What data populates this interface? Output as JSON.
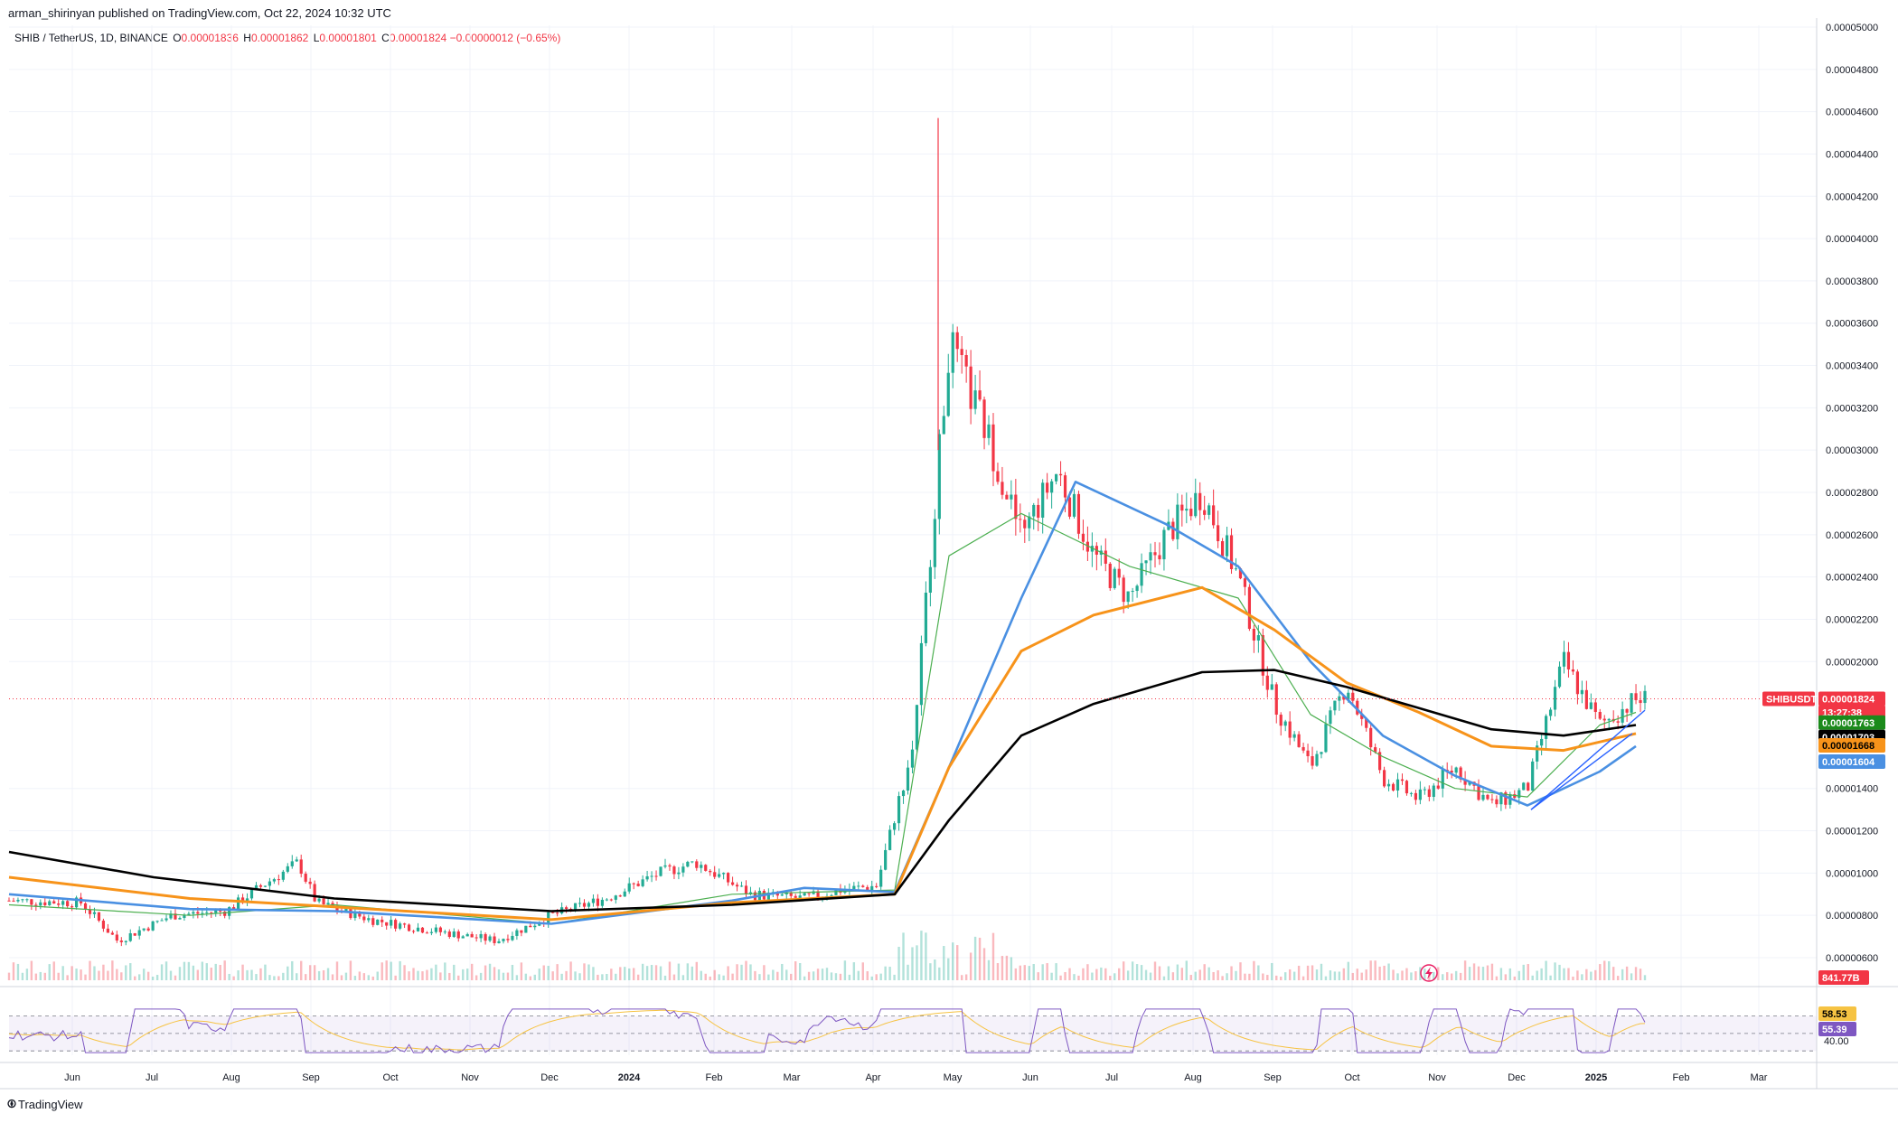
{
  "header": {
    "published": "arman_shirinyan published on TradingView.com, Oct 22, 2024 10:32 UTC"
  },
  "legend": {
    "symbol": "SHIB / TetherUS, 1D, BINANCE",
    "o_label": "O",
    "o": "0.00001836",
    "h_label": "H",
    "h": "0.00001862",
    "l_label": "L",
    "l": "0.00001801",
    "c_label": "C",
    "c": "0.00001824",
    "change": "−0.00000012 (−0.65%)"
  },
  "branding": {
    "name": "TradingView"
  },
  "icons": {
    "logo": "tradingview-logo-icon",
    "flash": "lightning-icon"
  },
  "colors": {
    "up": "#22ab94",
    "down": "#f23645",
    "ema20": "#4caf50",
    "ema50": "#f7931a",
    "sma100": "#4a90e2",
    "sma200": "#000000",
    "rsi": "#7e57c2",
    "rsi_ma": "#f6c343",
    "trend": "#2962ff"
  },
  "tags": {
    "symbol_tag": "SHIBUSDT",
    "last_price": "0.00001824",
    "countdown": "13:27:38",
    "ema_green": "0.00001763",
    "ma_black": "0.00001703",
    "ma_orange": "0.00001668",
    "ma_blue": "0.00001604",
    "volume": "841.77B",
    "rsi_ma": "58.53",
    "rsi": "55.39",
    "rsi_level": "40.00"
  },
  "chart_data": {
    "type": "candlestick",
    "title": "SHIB / TetherUS, 1D, BINANCE",
    "x_ticks": [
      "Jun",
      "Jul",
      "Aug",
      "Sep",
      "Oct",
      "Nov",
      "Dec",
      "2024",
      "Feb",
      "Mar",
      "Apr",
      "May",
      "Jun",
      "Jul",
      "Aug",
      "Sep",
      "Oct",
      "Nov",
      "Dec",
      "2025",
      "Feb",
      "Mar"
    ],
    "y_ticks": [
      "0.00005000",
      "0.00004800",
      "0.00004600",
      "0.00004400",
      "0.00004200",
      "0.00004000",
      "0.00003800",
      "0.00003600",
      "0.00003400",
      "0.00003200",
      "0.00003000",
      "0.00002800",
      "0.00002600",
      "0.00002400",
      "0.00002200",
      "0.00002000",
      "0.00001400",
      "0.00001200",
      "0.00001000",
      "0.00000800",
      "0.00000600"
    ],
    "ylim": [
      5.2e-06,
      5e-06
    ],
    "price_path": [
      [
        0.0,
        8.7e-06
      ],
      [
        0.04,
        8.6e-06
      ],
      [
        0.06,
        6.8e-06
      ],
      [
        0.09,
        8e-06
      ],
      [
        0.12,
        8.2e-06
      ],
      [
        0.14,
        9.4e-06
      ],
      [
        0.16,
        1.05e-05
      ],
      [
        0.17,
        8.6e-06
      ],
      [
        0.2,
        7.8e-06
      ],
      [
        0.24,
        7.2e-06
      ],
      [
        0.27,
        6.8e-06
      ],
      [
        0.3,
        8e-06
      ],
      [
        0.33,
        8.8e-06
      ],
      [
        0.36,
        1e-05
      ],
      [
        0.38,
        1.05e-05
      ],
      [
        0.41,
        9e-06
      ],
      [
        0.44,
        8.8e-06
      ],
      [
        0.46,
        9.2e-06
      ],
      [
        0.48,
        9.4e-06
      ],
      [
        0.5,
        1.6e-05
      ],
      [
        0.52,
        3.5e-05
      ],
      [
        0.54,
        3.1e-05
      ],
      [
        0.56,
        2.6e-05
      ],
      [
        0.58,
        2.9e-05
      ],
      [
        0.6,
        2.5e-05
      ],
      [
        0.62,
        2.3e-05
      ],
      [
        0.64,
        2.6e-05
      ],
      [
        0.66,
        2.8e-05
      ],
      [
        0.68,
        2.4e-05
      ],
      [
        0.7,
        1.8e-05
      ],
      [
        0.72,
        1.5e-05
      ],
      [
        0.74,
        1.9e-05
      ],
      [
        0.76,
        1.45e-05
      ],
      [
        0.78,
        1.35e-05
      ],
      [
        0.8,
        1.5e-05
      ],
      [
        0.82,
        1.32e-05
      ],
      [
        0.84,
        1.4e-05
      ],
      [
        0.86,
        2e-05
      ],
      [
        0.88,
        1.7e-05
      ],
      [
        0.9,
        1.82e-05
      ]
    ],
    "ema20_path": [
      [
        0,
        8.5e-06
      ],
      [
        0.1,
        8e-06
      ],
      [
        0.18,
        8.5e-06
      ],
      [
        0.3,
        7.6e-06
      ],
      [
        0.4,
        9e-06
      ],
      [
        0.49,
        9.2e-06
      ],
      [
        0.52,
        2.5e-05
      ],
      [
        0.56,
        2.7e-05
      ],
      [
        0.62,
        2.45e-05
      ],
      [
        0.68,
        2.3e-05
      ],
      [
        0.72,
        1.75e-05
      ],
      [
        0.76,
        1.55e-05
      ],
      [
        0.8,
        1.4e-05
      ],
      [
        0.84,
        1.36e-05
      ],
      [
        0.88,
        1.7e-05
      ],
      [
        0.9,
        1.76e-05
      ]
    ],
    "sma100_path": [
      [
        0,
        9e-06
      ],
      [
        0.1,
        8.3e-06
      ],
      [
        0.18,
        8.2e-06
      ],
      [
        0.3,
        7.6e-06
      ],
      [
        0.4,
        8.7e-06
      ],
      [
        0.44,
        9.3e-06
      ],
      [
        0.49,
        9.1e-06
      ],
      [
        0.52,
        1.5e-05
      ],
      [
        0.56,
        2.3e-05
      ],
      [
        0.59,
        2.85e-05
      ],
      [
        0.64,
        2.65e-05
      ],
      [
        0.68,
        2.45e-05
      ],
      [
        0.72,
        2e-05
      ],
      [
        0.76,
        1.65e-05
      ],
      [
        0.8,
        1.46e-05
      ],
      [
        0.84,
        1.32e-05
      ],
      [
        0.88,
        1.48e-05
      ],
      [
        0.9,
        1.6e-05
      ]
    ],
    "ema50_path": [
      [
        0,
        9.8e-06
      ],
      [
        0.1,
        8.8e-06
      ],
      [
        0.18,
        8.4e-06
      ],
      [
        0.3,
        7.8e-06
      ],
      [
        0.4,
        8.6e-06
      ],
      [
        0.49,
        9e-06
      ],
      [
        0.52,
        1.5e-05
      ],
      [
        0.56,
        2.05e-05
      ],
      [
        0.6,
        2.22e-05
      ],
      [
        0.66,
        2.35e-05
      ],
      [
        0.7,
        2.15e-05
      ],
      [
        0.74,
        1.9e-05
      ],
      [
        0.78,
        1.76e-05
      ],
      [
        0.82,
        1.6e-05
      ],
      [
        0.86,
        1.58e-05
      ],
      [
        0.9,
        1.66e-05
      ]
    ],
    "sma200_path": [
      [
        0,
        1.1e-05
      ],
      [
        0.08,
        9.8e-06
      ],
      [
        0.18,
        8.8e-06
      ],
      [
        0.3,
        8.2e-06
      ],
      [
        0.4,
        8.5e-06
      ],
      [
        0.49,
        9e-06
      ],
      [
        0.52,
        1.25e-05
      ],
      [
        0.56,
        1.65e-05
      ],
      [
        0.6,
        1.8e-05
      ],
      [
        0.66,
        1.95e-05
      ],
      [
        0.7,
        1.96e-05
      ],
      [
        0.74,
        1.88e-05
      ],
      [
        0.78,
        1.78e-05
      ],
      [
        0.82,
        1.68e-05
      ],
      [
        0.86,
        1.65e-05
      ],
      [
        0.9,
        1.7e-05
      ]
    ],
    "trendlines": [
      {
        "from": [
          0.842,
          1.3e-05
        ],
        "to": [
          0.905,
          1.77e-05
        ]
      },
      {
        "from": [
          0.842,
          1.3e-05
        ],
        "to": [
          0.898,
          1.66e-05
        ]
      }
    ],
    "volume_label": "841.77B",
    "rsi": {
      "levels": [
        70,
        50,
        30
      ],
      "last": 55.39,
      "ma_last": 58.53
    }
  }
}
